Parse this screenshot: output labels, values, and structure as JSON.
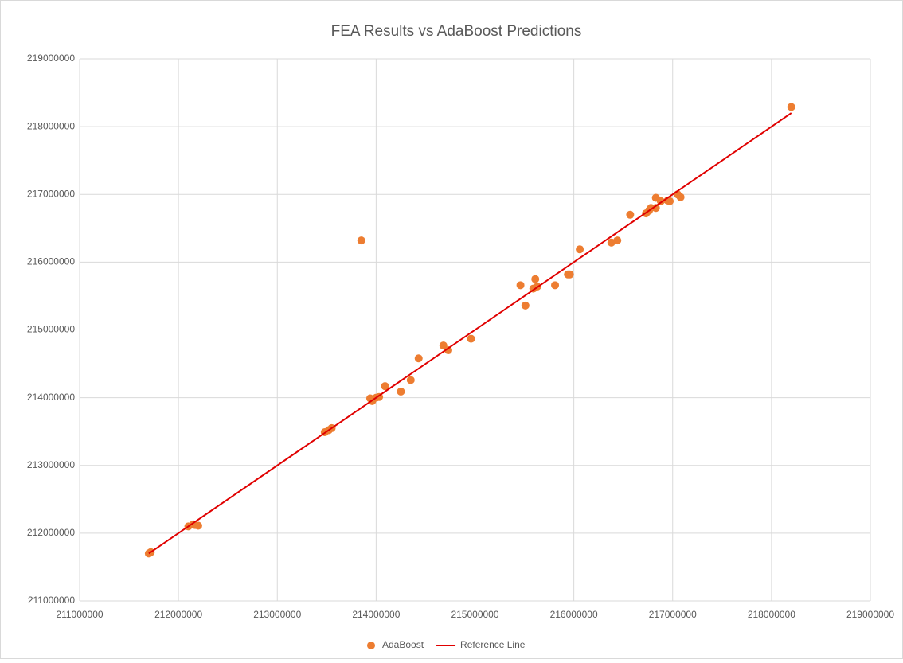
{
  "chart_data": {
    "type": "scatter",
    "title": "FEA Results vs AdaBoost Predictions",
    "xlim": [
      211000000,
      219000000
    ],
    "xticks": [
      211000000,
      212000000,
      213000000,
      214000000,
      215000000,
      216000000,
      217000000,
      218000000,
      219000000
    ],
    "ylim": [
      211000000,
      219000000
    ],
    "yticks": [
      211000000,
      212000000,
      213000000,
      214000000,
      215000000,
      216000000,
      217000000,
      218000000,
      219000000
    ],
    "grid": true,
    "legend": "bottom",
    "series": [
      {
        "name": "AdaBoost",
        "color": "#ed7d31",
        "x": [
          211700000,
          211720000,
          212100000,
          212150000,
          212200000,
          212170000,
          213480000,
          213520000,
          213550000,
          213850000,
          213940000,
          213960000,
          214000000,
          214030000,
          214090000,
          214250000,
          214350000,
          214430000,
          214680000,
          214730000,
          214960000,
          215460000,
          215510000,
          215590000,
          215610000,
          215630000,
          215810000,
          215940000,
          215960000,
          216060000,
          216380000,
          216440000,
          216570000,
          216730000,
          216760000,
          216780000,
          216830000,
          216830000,
          216880000,
          216950000,
          216970000,
          217050000,
          217080000,
          218200000
        ],
        "values": [
          211700000,
          211720000,
          212100000,
          212130000,
          212110000,
          212120000,
          213490000,
          213520000,
          213550000,
          216320000,
          213990000,
          213950000,
          214000000,
          214010000,
          214170000,
          214090000,
          214260000,
          214580000,
          214770000,
          214700000,
          214870000,
          215660000,
          215360000,
          215610000,
          215750000,
          215640000,
          215660000,
          215820000,
          215820000,
          216190000,
          216290000,
          216320000,
          216700000,
          216720000,
          216760000,
          216800000,
          216950000,
          216800000,
          216900000,
          216910000,
          216900000,
          217000000,
          216960000,
          218290000
        ]
      },
      {
        "name": "Reference Line",
        "color": "#e00000",
        "type": "line",
        "x": [
          211700000,
          218200000
        ],
        "values": [
          211700000,
          218200000
        ]
      }
    ]
  }
}
